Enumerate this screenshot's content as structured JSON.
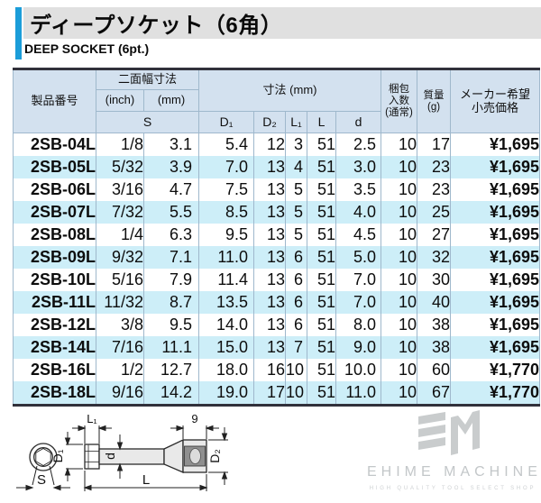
{
  "colors": {
    "accent_blue": "#1b9dd9",
    "title_bg": "#e0e0e0",
    "header_bg": "#d3e1ef",
    "stripe_cyan": "#cdeef8",
    "table_frame_dark": "#31313b",
    "cell_border": "#9fb8cc",
    "logo_gray": "#c5c9cb"
  },
  "header": {
    "title_ja": "ディープソケット（6角）",
    "subtitle_en": "DEEP SOCKET (6pt.)"
  },
  "table": {
    "header": {
      "product": "製品番号",
      "width_group": "二面幅寸法",
      "inch": "(inch)",
      "mm": "(mm)",
      "s": "S",
      "dim_group": "寸法 (mm)",
      "d1": "D₁",
      "d2": "D₂",
      "l1": "L₁",
      "l": "L",
      "d": "d",
      "pack": "梱包\n入数\n(通常)",
      "mass": "質量\n(g)",
      "price": "メーカー希望\n小売価格"
    },
    "rows": [
      [
        "2SB-04L",
        "1/8",
        "3.1",
        "5.4",
        "12",
        "3",
        "51",
        "2.5",
        "10",
        "17",
        "¥1,695"
      ],
      [
        "2SB-05L",
        "5/32",
        "3.9",
        "7.0",
        "13",
        "4",
        "51",
        "3.0",
        "10",
        "23",
        "¥1,695"
      ],
      [
        "2SB-06L",
        "3/16",
        "4.7",
        "7.5",
        "13",
        "5",
        "51",
        "3.5",
        "10",
        "23",
        "¥1,695"
      ],
      [
        "2SB-07L",
        "7/32",
        "5.5",
        "8.5",
        "13",
        "5",
        "51",
        "4.0",
        "10",
        "25",
        "¥1,695"
      ],
      [
        "2SB-08L",
        "1/4",
        "6.3",
        "9.5",
        "13",
        "5",
        "51",
        "4.5",
        "10",
        "27",
        "¥1,695"
      ],
      [
        "2SB-09L",
        "9/32",
        "7.1",
        "11.0",
        "13",
        "6",
        "51",
        "5.0",
        "10",
        "32",
        "¥1,695"
      ],
      [
        "2SB-10L",
        "5/16",
        "7.9",
        "11.4",
        "13",
        "6",
        "51",
        "7.0",
        "10",
        "30",
        "¥1,695"
      ],
      [
        "2SB-11L",
        "11/32",
        "8.7",
        "13.5",
        "13",
        "6",
        "51",
        "7.0",
        "10",
        "40",
        "¥1,695"
      ],
      [
        "2SB-12L",
        "3/8",
        "9.5",
        "14.0",
        "13",
        "6",
        "51",
        "8.0",
        "10",
        "38",
        "¥1,695"
      ],
      [
        "2SB-14L",
        "7/16",
        "11.1",
        "15.0",
        "13",
        "7",
        "51",
        "9.0",
        "10",
        "38",
        "¥1,695"
      ],
      [
        "2SB-16L",
        "1/2",
        "12.7",
        "18.0",
        "16",
        "10",
        "51",
        "10.0",
        "10",
        "60",
        "¥1,770"
      ],
      [
        "2SB-18L",
        "9/16",
        "14.2",
        "19.0",
        "17",
        "10",
        "51",
        "11.0",
        "10",
        "67",
        "¥1,770"
      ]
    ]
  },
  "diagram": {
    "labels": {
      "s": "S",
      "d1": "D₁",
      "d2": "D₂",
      "l1": "L₁",
      "l": "L",
      "d": "d",
      "nine": "9"
    }
  },
  "logo": {
    "name": "EHIME MACHINE",
    "tagline": "HIGH QUALITY TOOL SELECT SHOP"
  }
}
